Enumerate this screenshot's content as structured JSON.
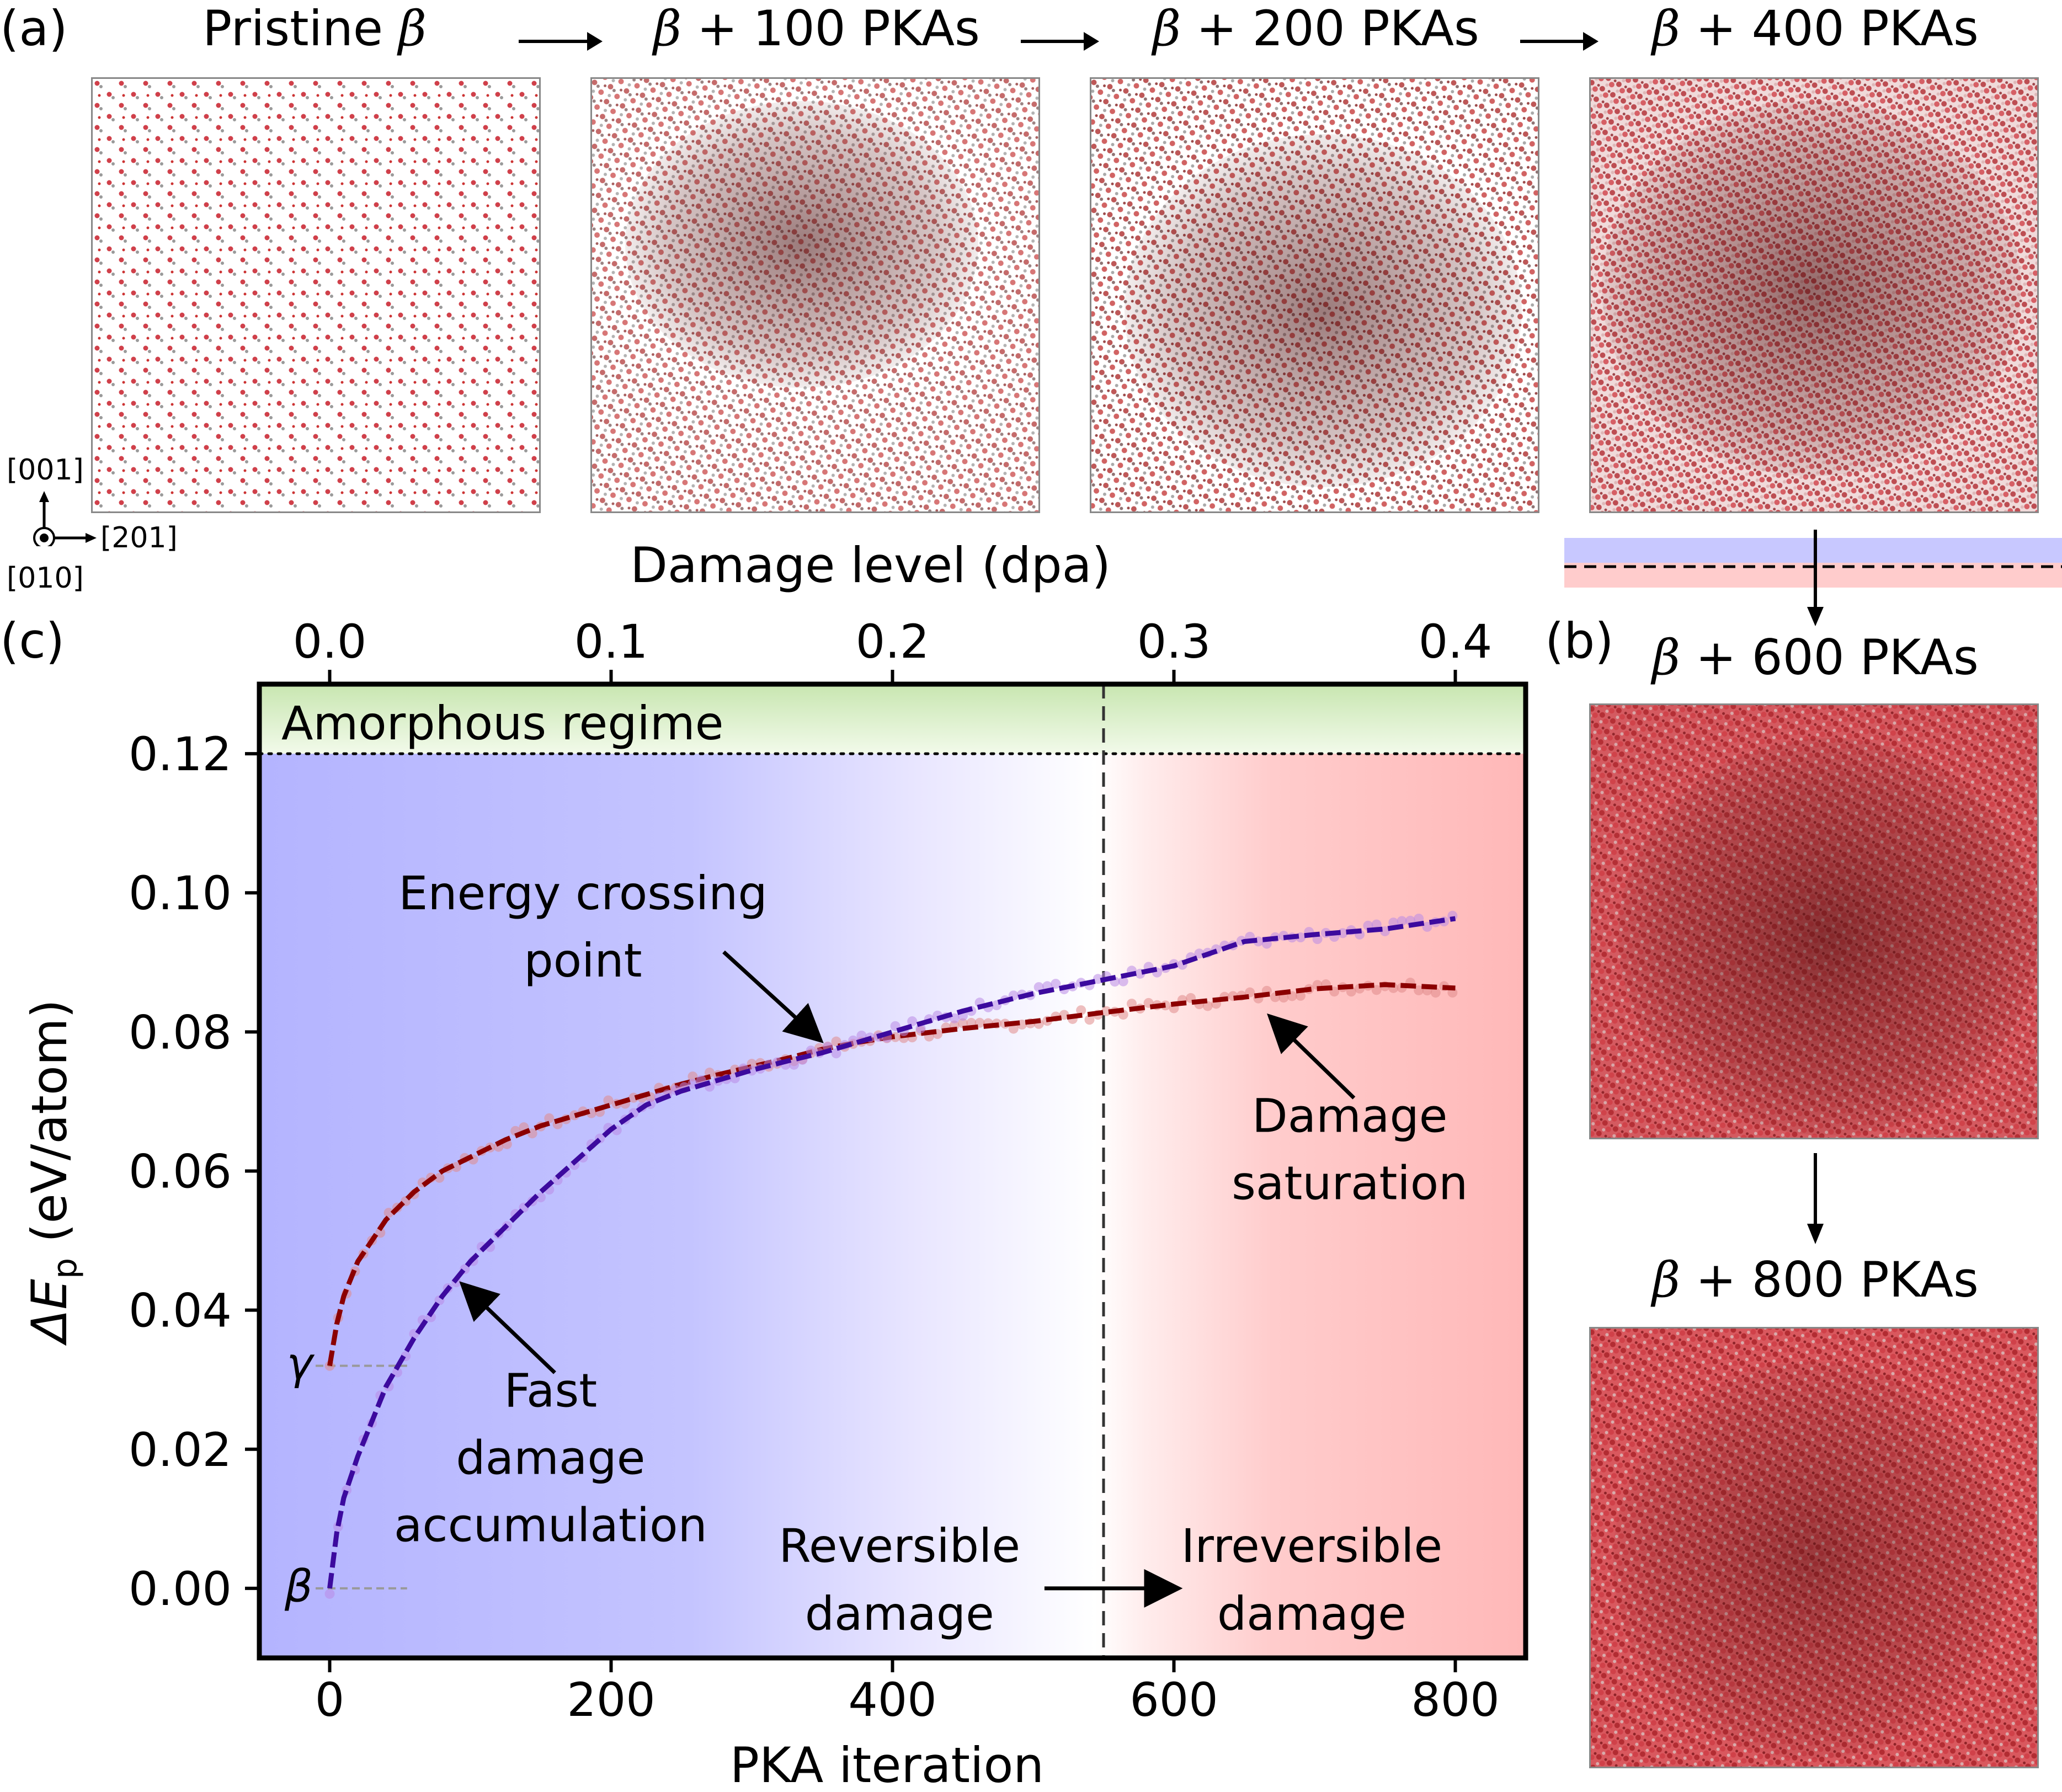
{
  "panel_labels": {
    "a": "(a)",
    "b": "(b)",
    "c": "(c)"
  },
  "snapshots": {
    "pristine": {
      "prefix": "Pristine",
      "symbol": "β",
      "suffix": ""
    },
    "pka100": {
      "prefix": "",
      "symbol": "β",
      "suffix": " + 100 PKAs"
    },
    "pka200": {
      "prefix": "",
      "symbol": "β",
      "suffix": " + 200 PKAs"
    },
    "pka400": {
      "prefix": "",
      "symbol": "β",
      "suffix": " + 400 PKAs"
    },
    "pka600": {
      "prefix": "",
      "symbol": "β",
      "suffix": " + 600 PKAs"
    },
    "pka800": {
      "prefix": "",
      "symbol": "β",
      "suffix": " + 800 PKAs"
    }
  },
  "axes_indicator": {
    "up": "[001]",
    "right": "[201]",
    "out": "[010]"
  },
  "colors": {
    "gamma_curve": "#8b0000",
    "beta_curve": "#3c0a9e",
    "gamma_points": "#e08a8a",
    "beta_points": "#b98ae6",
    "blue_region": "#b8b8ff",
    "red_region": "#ffc4c4",
    "amorphous_band": "#e6f4d8"
  },
  "chart_data": {
    "type": "line",
    "title": "",
    "xlabel": "PKA iteration",
    "ylabel": "ΔE",
    "ylabel_sub": "p",
    "ylabel_unit": " (eV/atom)",
    "top_xlabel": "Damage level (dpa)",
    "xlim": [
      -50,
      850
    ],
    "ylim": [
      -0.01,
      0.13
    ],
    "x_ticks": [
      0,
      200,
      400,
      600,
      800
    ],
    "x_tick_labels": [
      "0",
      "200",
      "400",
      "600",
      "800"
    ],
    "y_ticks": [
      0.0,
      0.02,
      0.04,
      0.06,
      0.08,
      0.1,
      0.12
    ],
    "y_tick_labels": [
      "0.00",
      "0.02",
      "0.04",
      "0.06",
      "0.08",
      "0.10",
      "0.12"
    ],
    "top_ticks": [
      0.0,
      0.1,
      0.2,
      0.3,
      0.4
    ],
    "top_tick_labels": [
      "0.0",
      "0.1",
      "0.2",
      "0.3",
      "0.4"
    ],
    "dpa_per_pka": 0.0005,
    "amorphous_threshold": 0.12,
    "reversible_boundary_x": 550,
    "series": [
      {
        "name": "γ",
        "x": [
          0,
          5,
          10,
          20,
          30,
          40,
          60,
          80,
          100,
          125,
          150,
          175,
          200,
          225,
          250,
          275,
          300,
          325,
          350,
          375,
          400,
          450,
          500,
          550,
          600,
          650,
          700,
          750,
          800
        ],
        "y": [
          0.032,
          0.038,
          0.042,
          0.047,
          0.05,
          0.053,
          0.057,
          0.06,
          0.062,
          0.0645,
          0.0665,
          0.068,
          0.0695,
          0.071,
          0.0725,
          0.0738,
          0.075,
          0.0762,
          0.0775,
          0.0785,
          0.0793,
          0.0805,
          0.0815,
          0.0828,
          0.084,
          0.085,
          0.0862,
          0.0868,
          0.0863
        ]
      },
      {
        "name": "β",
        "x": [
          0,
          5,
          10,
          20,
          30,
          40,
          60,
          80,
          100,
          125,
          150,
          175,
          200,
          225,
          250,
          275,
          300,
          325,
          350,
          375,
          400,
          450,
          500,
          550,
          600,
          650,
          700,
          750,
          800
        ],
        "y": [
          0.0,
          0.008,
          0.013,
          0.019,
          0.024,
          0.029,
          0.036,
          0.042,
          0.047,
          0.052,
          0.057,
          0.0615,
          0.066,
          0.0695,
          0.0715,
          0.073,
          0.0745,
          0.0758,
          0.077,
          0.0785,
          0.08,
          0.083,
          0.0855,
          0.0875,
          0.0895,
          0.093,
          0.094,
          0.0948,
          0.0963
        ]
      }
    ],
    "curve_labels": {
      "gamma": "γ",
      "beta": "β"
    },
    "annotations": {
      "amorphous": "Amorphous regime",
      "crossing_line1": "Energy crossing",
      "crossing_line2": "point",
      "saturation_line1": "Damage",
      "saturation_line2": "saturation",
      "fast_line1": "Fast",
      "fast_line2": "damage",
      "fast_line3": "accumulation",
      "reversible_line1": "Reversible",
      "reversible_line2": "damage",
      "irreversible_line1": "Irreversible",
      "irreversible_line2": "damage"
    }
  }
}
